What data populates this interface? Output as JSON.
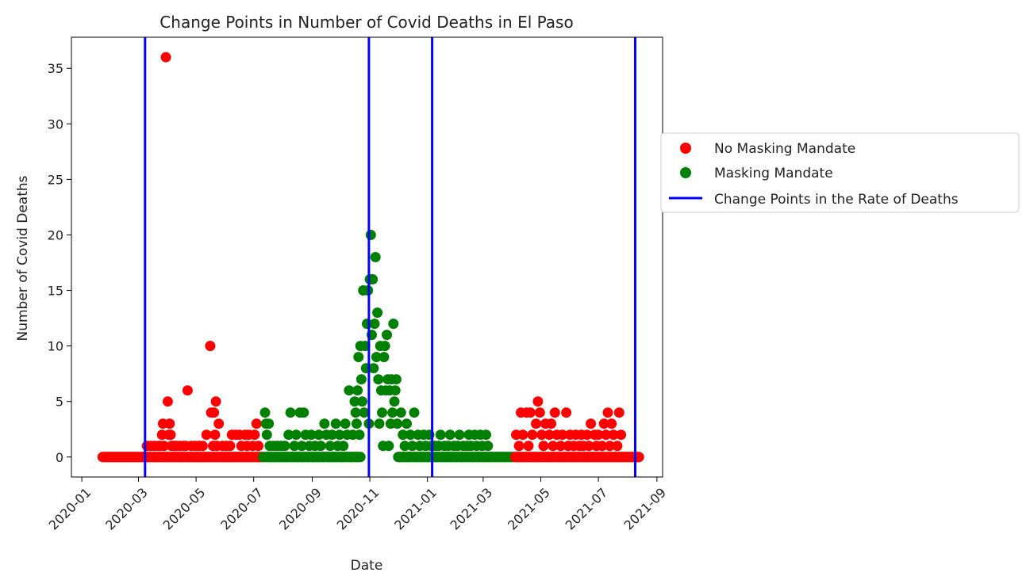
{
  "chart_data": {
    "type": "scatter",
    "title": "Change Points in Number of Covid Deaths in El Paso",
    "xlabel": "Date",
    "ylabel": "Number of Covid Deaths",
    "x_axis": {
      "type": "date",
      "range": [
        "2019-12-21",
        "2021-09-07"
      ],
      "ticks": [
        "2020-01",
        "2020-03",
        "2020-05",
        "2020-07",
        "2020-09",
        "2020-11",
        "2021-01",
        "2021-03",
        "2021-05",
        "2021-07",
        "2021-09"
      ]
    },
    "y_axis": {
      "range": [
        -1.8,
        37.8
      ],
      "ticks": [
        "0",
        "5",
        "10",
        "15",
        "20",
        "25",
        "30",
        "35"
      ]
    },
    "grid": false,
    "legend_position": "right",
    "colors": {
      "no_mask": "#ff0000",
      "mask": "#008000",
      "change": "#0000ff"
    },
    "series": [
      {
        "name": "No Masking Mandate",
        "marker": "circle",
        "color": "#ff0000",
        "points": [
          [
            "2020-03-10",
            1
          ],
          [
            "2020-03-14",
            1
          ],
          [
            "2020-03-18",
            1
          ],
          [
            "2020-03-20",
            0
          ],
          [
            "2020-03-22",
            1
          ],
          [
            "2020-03-24",
            1
          ],
          [
            "2020-03-26",
            2
          ],
          [
            "2020-03-27",
            3
          ],
          [
            "2020-03-28",
            1
          ],
          [
            "2020-03-30",
            36
          ],
          [
            "2020-03-31",
            0
          ],
          [
            "2020-04-01",
            5
          ],
          [
            "2020-04-02",
            2
          ],
          [
            "2020-04-03",
            3
          ],
          [
            "2020-04-04",
            2
          ],
          [
            "2020-04-05",
            1
          ],
          [
            "2020-04-07",
            0
          ],
          [
            "2020-04-08",
            1
          ],
          [
            "2020-04-10",
            1
          ],
          [
            "2020-04-12",
            0
          ],
          [
            "2020-04-14",
            1
          ],
          [
            "2020-04-16",
            0
          ],
          [
            "2020-04-18",
            1
          ],
          [
            "2020-04-20",
            1
          ],
          [
            "2020-04-22",
            6
          ],
          [
            "2020-04-24",
            0
          ],
          [
            "2020-04-26",
            1
          ],
          [
            "2020-04-28",
            0
          ],
          [
            "2020-04-30",
            1
          ],
          [
            "2020-05-02",
            0
          ],
          [
            "2020-05-04",
            1
          ],
          [
            "2020-05-06",
            0
          ],
          [
            "2020-05-08",
            1
          ],
          [
            "2020-05-10",
            0
          ],
          [
            "2020-05-12",
            2
          ],
          [
            "2020-05-14",
            0
          ],
          [
            "2020-05-16",
            10
          ],
          [
            "2020-05-17",
            4
          ],
          [
            "2020-05-19",
            1
          ],
          [
            "2020-05-20",
            4
          ],
          [
            "2020-05-21",
            2
          ],
          [
            "2020-05-22",
            5
          ],
          [
            "2020-05-23",
            1
          ],
          [
            "2020-05-25",
            3
          ],
          [
            "2020-05-27",
            0
          ],
          [
            "2020-05-29",
            1
          ],
          [
            "2020-05-31",
            0
          ],
          [
            "2020-06-02",
            1
          ],
          [
            "2020-06-04",
            0
          ],
          [
            "2020-06-06",
            1
          ],
          [
            "2020-06-08",
            2
          ],
          [
            "2020-06-10",
            0
          ],
          [
            "2020-06-12",
            2
          ],
          [
            "2020-06-14",
            0
          ],
          [
            "2020-06-16",
            2
          ],
          [
            "2020-06-18",
            1
          ],
          [
            "2020-06-20",
            0
          ],
          [
            "2020-06-22",
            2
          ],
          [
            "2020-06-24",
            1
          ],
          [
            "2020-06-26",
            2
          ],
          [
            "2020-06-28",
            0
          ],
          [
            "2020-06-30",
            1
          ],
          [
            "2020-07-02",
            2
          ],
          [
            "2020-07-04",
            3
          ],
          [
            "2020-07-06",
            1
          ],
          [
            "2021-04-05",
            2
          ],
          [
            "2021-04-06",
            0
          ],
          [
            "2021-04-08",
            1
          ],
          [
            "2021-04-10",
            4
          ],
          [
            "2021-04-12",
            2
          ],
          [
            "2021-04-14",
            0
          ],
          [
            "2021-04-16",
            4
          ],
          [
            "2021-04-18",
            1
          ],
          [
            "2021-04-20",
            4
          ],
          [
            "2021-04-22",
            2
          ],
          [
            "2021-04-24",
            0
          ],
          [
            "2021-04-26",
            3
          ],
          [
            "2021-04-28",
            5
          ],
          [
            "2021-04-30",
            4
          ],
          [
            "2021-05-02",
            2
          ],
          [
            "2021-05-04",
            1
          ],
          [
            "2021-05-06",
            3
          ],
          [
            "2021-05-08",
            0
          ],
          [
            "2021-05-10",
            2
          ],
          [
            "2021-05-12",
            3
          ],
          [
            "2021-05-14",
            1
          ],
          [
            "2021-05-16",
            4
          ],
          [
            "2021-05-18",
            2
          ],
          [
            "2021-05-20",
            0
          ],
          [
            "2021-05-22",
            1
          ],
          [
            "2021-05-24",
            2
          ],
          [
            "2021-05-26",
            0
          ],
          [
            "2021-05-28",
            4
          ],
          [
            "2021-05-30",
            1
          ],
          [
            "2021-06-01",
            2
          ],
          [
            "2021-06-03",
            0
          ],
          [
            "2021-06-05",
            1
          ],
          [
            "2021-06-07",
            2
          ],
          [
            "2021-06-09",
            0
          ],
          [
            "2021-06-11",
            1
          ],
          [
            "2021-06-13",
            2
          ],
          [
            "2021-06-15",
            1
          ],
          [
            "2021-06-17",
            0
          ],
          [
            "2021-06-19",
            2
          ],
          [
            "2021-06-21",
            1
          ],
          [
            "2021-06-23",
            3
          ],
          [
            "2021-06-25",
            0
          ],
          [
            "2021-06-27",
            2
          ],
          [
            "2021-06-29",
            1
          ],
          [
            "2021-07-01",
            2
          ],
          [
            "2021-07-03",
            0
          ],
          [
            "2021-07-05",
            1
          ],
          [
            "2021-07-07",
            3
          ],
          [
            "2021-07-09",
            2
          ],
          [
            "2021-07-11",
            4
          ],
          [
            "2021-07-13",
            1
          ],
          [
            "2021-07-15",
            3
          ],
          [
            "2021-07-17",
            2
          ],
          [
            "2021-07-19",
            0
          ],
          [
            "2021-07-21",
            1
          ],
          [
            "2021-07-23",
            4
          ],
          [
            "2021-07-25",
            2
          ],
          [
            "2021-07-27",
            0
          ]
        ]
      },
      {
        "name": "Masking Mandate",
        "marker": "circle",
        "color": "#008000",
        "points": [
          [
            "2020-07-13",
            4
          ],
          [
            "2020-07-14",
            3
          ],
          [
            "2020-07-15",
            2
          ],
          [
            "2020-07-16",
            0
          ],
          [
            "2020-07-17",
            3
          ],
          [
            "2020-07-18",
            1
          ],
          [
            "2020-07-20",
            0
          ],
          [
            "2020-07-22",
            1
          ],
          [
            "2020-07-24",
            0
          ],
          [
            "2020-07-26",
            1
          ],
          [
            "2020-07-28",
            0
          ],
          [
            "2020-07-30",
            1
          ],
          [
            "2020-08-01",
            0
          ],
          [
            "2020-08-03",
            1
          ],
          [
            "2020-08-05",
            0
          ],
          [
            "2020-08-07",
            2
          ],
          [
            "2020-08-09",
            4
          ],
          [
            "2020-08-11",
            0
          ],
          [
            "2020-08-13",
            1
          ],
          [
            "2020-08-15",
            2
          ],
          [
            "2020-08-17",
            0
          ],
          [
            "2020-08-19",
            4
          ],
          [
            "2020-08-21",
            1
          ],
          [
            "2020-08-23",
            4
          ],
          [
            "2020-08-25",
            2
          ],
          [
            "2020-08-27",
            0
          ],
          [
            "2020-08-29",
            1
          ],
          [
            "2020-08-31",
            2
          ],
          [
            "2020-09-02",
            0
          ],
          [
            "2020-09-04",
            1
          ],
          [
            "2020-09-06",
            0
          ],
          [
            "2020-09-08",
            2
          ],
          [
            "2020-09-10",
            1
          ],
          [
            "2020-09-12",
            0
          ],
          [
            "2020-09-14",
            3
          ],
          [
            "2020-09-16",
            2
          ],
          [
            "2020-09-18",
            0
          ],
          [
            "2020-09-20",
            1
          ],
          [
            "2020-09-22",
            2
          ],
          [
            "2020-09-24",
            0
          ],
          [
            "2020-09-26",
            3
          ],
          [
            "2020-09-28",
            1
          ],
          [
            "2020-09-30",
            2
          ],
          [
            "2020-10-02",
            0
          ],
          [
            "2020-10-04",
            1
          ],
          [
            "2020-10-06",
            3
          ],
          [
            "2020-10-08",
            2
          ],
          [
            "2020-10-10",
            6
          ],
          [
            "2020-10-12",
            0
          ],
          [
            "2020-10-14",
            2
          ],
          [
            "2020-10-16",
            5
          ],
          [
            "2020-10-17",
            4
          ],
          [
            "2020-10-18",
            3
          ],
          [
            "2020-10-19",
            6
          ],
          [
            "2020-10-20",
            9
          ],
          [
            "2020-10-21",
            2
          ],
          [
            "2020-10-22",
            10
          ],
          [
            "2020-10-23",
            7
          ],
          [
            "2020-10-24",
            5
          ],
          [
            "2020-10-25",
            15
          ],
          [
            "2020-10-26",
            4
          ],
          [
            "2020-10-27",
            10
          ],
          [
            "2020-10-28",
            8
          ],
          [
            "2020-10-29",
            12
          ],
          [
            "2020-10-30",
            15
          ],
          [
            "2020-10-31",
            3
          ],
          [
            "2020-11-01",
            16
          ],
          [
            "2020-11-02",
            20
          ],
          [
            "2020-11-03",
            11
          ],
          [
            "2020-11-04",
            16
          ],
          [
            "2020-11-05",
            8
          ],
          [
            "2020-11-06",
            12
          ],
          [
            "2020-11-07",
            18
          ],
          [
            "2020-11-08",
            9
          ],
          [
            "2020-11-09",
            13
          ],
          [
            "2020-11-10",
            7
          ],
          [
            "2020-11-11",
            3
          ],
          [
            "2020-11-12",
            10
          ],
          [
            "2020-11-13",
            6
          ],
          [
            "2020-11-14",
            4
          ],
          [
            "2020-11-15",
            1
          ],
          [
            "2020-11-16",
            9
          ],
          [
            "2020-11-17",
            10
          ],
          [
            "2020-11-18",
            6
          ],
          [
            "2020-11-19",
            11
          ],
          [
            "2020-11-20",
            7
          ],
          [
            "2020-11-21",
            1
          ],
          [
            "2020-11-22",
            6
          ],
          [
            "2020-11-23",
            3
          ],
          [
            "2020-11-24",
            7
          ],
          [
            "2020-11-25",
            4
          ],
          [
            "2020-11-26",
            12
          ],
          [
            "2020-11-27",
            5
          ],
          [
            "2020-11-28",
            6
          ],
          [
            "2020-11-29",
            7
          ],
          [
            "2020-11-30",
            3
          ],
          [
            "2020-12-02",
            0
          ],
          [
            "2020-12-04",
            4
          ],
          [
            "2020-12-06",
            2
          ],
          [
            "2020-12-08",
            1
          ],
          [
            "2020-12-10",
            3
          ],
          [
            "2020-12-12",
            0
          ],
          [
            "2020-12-14",
            2
          ],
          [
            "2020-12-16",
            1
          ],
          [
            "2020-12-18",
            4
          ],
          [
            "2020-12-20",
            0
          ],
          [
            "2020-12-22",
            2
          ],
          [
            "2020-12-24",
            1
          ],
          [
            "2020-12-26",
            0
          ],
          [
            "2020-12-28",
            2
          ],
          [
            "2020-12-30",
            1
          ],
          [
            "2021-01-01",
            0
          ],
          [
            "2021-01-03",
            2
          ],
          [
            "2021-01-05",
            1
          ],
          [
            "2021-01-07",
            0
          ],
          [
            "2021-01-09",
            1
          ],
          [
            "2021-01-11",
            0
          ],
          [
            "2021-01-13",
            1
          ],
          [
            "2021-01-15",
            2
          ],
          [
            "2021-01-17",
            0
          ],
          [
            "2021-01-19",
            1
          ],
          [
            "2021-01-21",
            0
          ],
          [
            "2021-01-23",
            1
          ],
          [
            "2021-01-25",
            2
          ],
          [
            "2021-01-27",
            0
          ],
          [
            "2021-01-29",
            1
          ],
          [
            "2021-01-31",
            0
          ],
          [
            "2021-02-02",
            1
          ],
          [
            "2021-02-04",
            2
          ],
          [
            "2021-02-06",
            0
          ],
          [
            "2021-02-08",
            1
          ],
          [
            "2021-02-10",
            0
          ],
          [
            "2021-02-12",
            1
          ],
          [
            "2021-02-14",
            2
          ],
          [
            "2021-02-16",
            1
          ],
          [
            "2021-02-18",
            0
          ],
          [
            "2021-02-20",
            2
          ],
          [
            "2021-02-22",
            1
          ],
          [
            "2021-02-24",
            0
          ],
          [
            "2021-02-26",
            2
          ],
          [
            "2021-02-28",
            1
          ],
          [
            "2021-03-02",
            0
          ],
          [
            "2021-03-04",
            2
          ],
          [
            "2021-03-06",
            1
          ],
          [
            "2021-03-08",
            0
          ]
        ]
      },
      {
        "name": "Change Points in the Rate of Deaths",
        "marker": "vertical-line",
        "color": "#0000ff",
        "dates": [
          "2020-03-08",
          "2020-10-31",
          "2021-01-06",
          "2021-08-09"
        ]
      }
    ]
  }
}
